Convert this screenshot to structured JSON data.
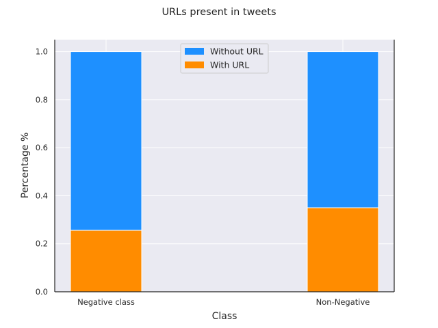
{
  "colors": {
    "background": "#eaeaf2",
    "grid": "#ffffff",
    "axes_edge": "#262626",
    "text": "#262626",
    "without_url": "#1e90ff",
    "with_url": "#ff8c00"
  },
  "chart_data": {
    "type": "bar",
    "stacked": true,
    "title": "URLs present in tweets",
    "xlabel": "Class",
    "ylabel": "Percentage %",
    "categories": [
      "Negative class",
      "Non-Negative"
    ],
    "series": [
      {
        "name": "With URL",
        "values": [
          0.256,
          0.35
        ],
        "color": "#ff8c00"
      },
      {
        "name": "Without URL",
        "values": [
          0.744,
          0.65
        ],
        "color": "#1e90ff"
      }
    ],
    "ylim": [
      0,
      1.05
    ],
    "yticks": [
      "0.0",
      "0.2",
      "0.4",
      "0.6",
      "0.8",
      "1.0"
    ],
    "grid": true,
    "legend_position": "top-center",
    "legend_entries": [
      "Without URL",
      "With URL"
    ]
  }
}
